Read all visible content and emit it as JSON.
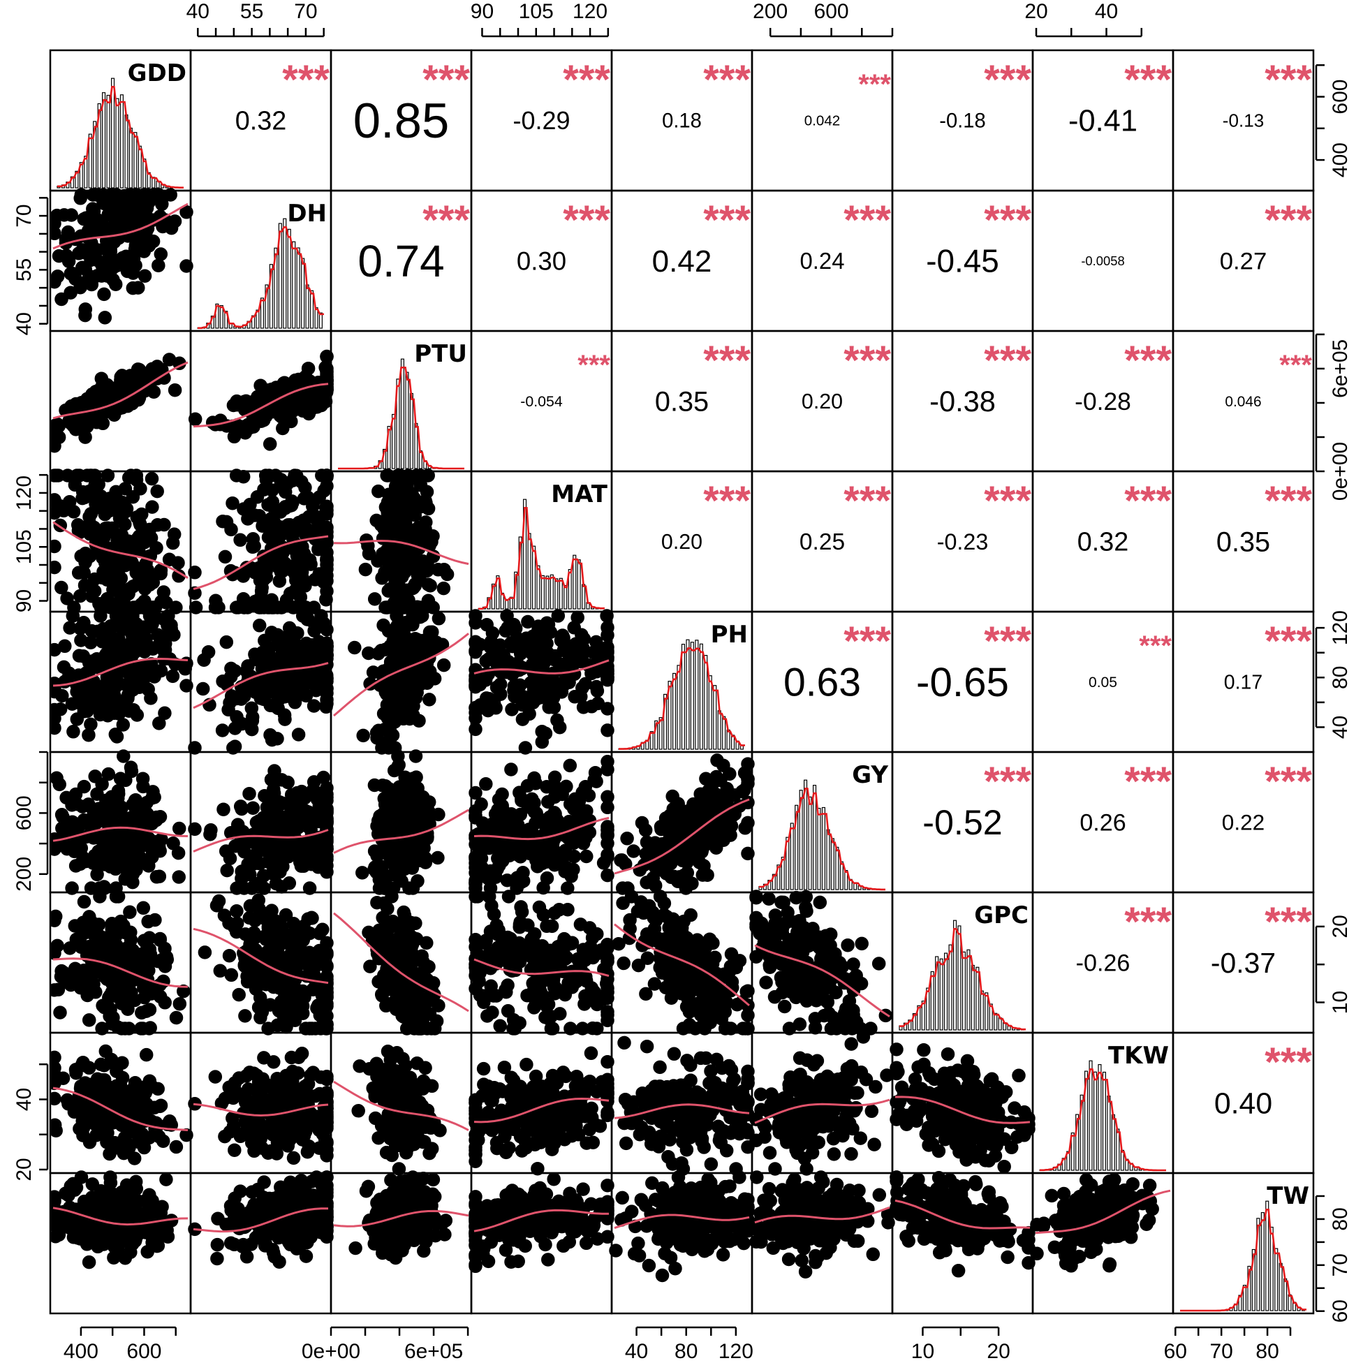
{
  "chart_data": {
    "type": "scatter",
    "variables": [
      "GDD",
      "DH",
      "PTU",
      "MAT",
      "PH",
      "GY",
      "GPC",
      "TKW",
      "TW"
    ],
    "significance_marker": "***",
    "colors": {
      "smooth_line": "#df536b",
      "density_line": "#e41a1c",
      "stars": "#df536b",
      "points": "#000000",
      "bars": "#000000"
    },
    "ranges": {
      "GDD": [
        303,
        747
      ],
      "DH": [
        38,
        77
      ],
      "PTU": [
        0,
        820000
      ],
      "MAT": [
        87,
        126
      ],
      "PH": [
        20,
        133
      ],
      "GY": [
        80,
        1000
      ],
      "GPC": [
        6,
        24.5
      ],
      "TKW": [
        19,
        59
      ],
      "TW": [
        59.5,
        90
      ]
    },
    "top_axis_ticks": [
      {
        "var": "DH",
        "labels": [
          "40",
          "55",
          "70"
        ],
        "values": [
          40,
          55,
          70
        ],
        "minor": [
          40,
          45,
          50,
          55,
          60,
          65,
          70,
          75
        ]
      },
      {
        "var": "MAT",
        "labels": [
          "90",
          "105",
          "120"
        ],
        "values": [
          90,
          105,
          120
        ],
        "minor": [
          90,
          95,
          100,
          105,
          110,
          115,
          120,
          125
        ]
      },
      {
        "var": "GY",
        "labels": [
          "200",
          "600"
        ],
        "values": [
          200,
          600
        ],
        "minor": [
          200,
          400,
          600,
          800,
          1000
        ]
      },
      {
        "var": "TKW",
        "labels": [
          "20",
          "40"
        ],
        "values": [
          20,
          40
        ],
        "minor": [
          20,
          30,
          40,
          50
        ]
      }
    ],
    "bottom_axis_ticks": [
      {
        "var": "GDD",
        "labels": [
          "400",
          "600"
        ],
        "values": [
          400,
          600
        ],
        "minor": [
          400,
          500,
          600,
          700
        ]
      },
      {
        "var": "PTU",
        "labels": [
          "0e+00",
          "6e+05"
        ],
        "values": [
          0,
          600000
        ],
        "minor": [
          0,
          200000,
          400000,
          600000,
          800000
        ]
      },
      {
        "var": "PH",
        "labels": [
          "40",
          "80",
          "120"
        ],
        "values": [
          40,
          80,
          120
        ],
        "minor": [
          40,
          60,
          80,
          100,
          120
        ]
      },
      {
        "var": "GPC",
        "labels": [
          "10",
          "20"
        ],
        "values": [
          10,
          20
        ],
        "minor": [
          10,
          15,
          20
        ]
      },
      {
        "var": "TW",
        "labels": [
          "60",
          "70",
          "80"
        ],
        "values": [
          60,
          70,
          80
        ],
        "minor": [
          60,
          65,
          70,
          75,
          80,
          85
        ]
      }
    ],
    "left_axis_ticks": [
      {
        "var": "DH",
        "labels": [
          "40",
          "55",
          "70"
        ],
        "values": [
          40,
          55,
          70
        ],
        "minor": [
          40,
          45,
          50,
          55,
          60,
          65,
          70,
          75
        ]
      },
      {
        "var": "MAT",
        "labels": [
          "90",
          "105",
          "120"
        ],
        "values": [
          90,
          105,
          120
        ],
        "minor": [
          90,
          95,
          100,
          105,
          110,
          115,
          120,
          125
        ]
      },
      {
        "var": "GY",
        "labels": [
          "200",
          "600"
        ],
        "values": [
          200,
          600
        ],
        "minor": [
          200,
          400,
          600,
          800,
          1000
        ]
      },
      {
        "var": "TKW",
        "labels": [
          "20",
          "40"
        ],
        "values": [
          20,
          40
        ],
        "minor": [
          20,
          30,
          40,
          50
        ]
      }
    ],
    "right_axis_ticks": [
      {
        "var": "GDD",
        "labels": [
          "400",
          "600"
        ],
        "values": [
          400,
          600
        ],
        "minor": [
          400,
          500,
          600,
          700
        ]
      },
      {
        "var": "PTU",
        "labels": [
          "0e+00",
          "6e+05"
        ],
        "values": [
          0,
          600000
        ],
        "minor": [
          0,
          200000,
          400000,
          600000,
          800000
        ]
      },
      {
        "var": "PH",
        "labels": [
          "40",
          "80",
          "120"
        ],
        "values": [
          40,
          80,
          120
        ],
        "minor": [
          40,
          60,
          80,
          100,
          120
        ]
      },
      {
        "var": "GPC",
        "labels": [
          "10",
          "20"
        ],
        "values": [
          10,
          20
        ],
        "minor": [
          10,
          15,
          20
        ]
      },
      {
        "var": "TW",
        "labels": [
          "60",
          "70",
          "80"
        ],
        "values": [
          60,
          70,
          80
        ],
        "minor": [
          60,
          65,
          70,
          75,
          80,
          85
        ]
      }
    ],
    "correlations": [
      {
        "row": "GDD",
        "col": "DH",
        "r": 0.32,
        "label": "0.32",
        "stars": "***"
      },
      {
        "row": "GDD",
        "col": "PTU",
        "r": 0.85,
        "label": "0.85",
        "stars": "***"
      },
      {
        "row": "GDD",
        "col": "MAT",
        "r": -0.29,
        "label": "-0.29",
        "stars": "***"
      },
      {
        "row": "GDD",
        "col": "PH",
        "r": 0.18,
        "label": "0.18",
        "stars": "***"
      },
      {
        "row": "GDD",
        "col": "GY",
        "r": 0.042,
        "label": "0.042",
        "stars": "***"
      },
      {
        "row": "GDD",
        "col": "GPC",
        "r": -0.18,
        "label": "-0.18",
        "stars": "***"
      },
      {
        "row": "GDD",
        "col": "TKW",
        "r": -0.41,
        "label": "-0.41",
        "stars": "***"
      },
      {
        "row": "GDD",
        "col": "TW",
        "r": -0.13,
        "label": "-0.13",
        "stars": "***"
      },
      {
        "row": "DH",
        "col": "PTU",
        "r": 0.74,
        "label": "0.74",
        "stars": "***"
      },
      {
        "row": "DH",
        "col": "MAT",
        "r": 0.3,
        "label": "0.30",
        "stars": "***"
      },
      {
        "row": "DH",
        "col": "PH",
        "r": 0.42,
        "label": "0.42",
        "stars": "***"
      },
      {
        "row": "DH",
        "col": "GY",
        "r": 0.24,
        "label": "0.24",
        "stars": "***"
      },
      {
        "row": "DH",
        "col": "GPC",
        "r": -0.45,
        "label": "-0.45",
        "stars": "***"
      },
      {
        "row": "DH",
        "col": "TKW",
        "r": -0.0058,
        "label": "-0.0058",
        "stars": ""
      },
      {
        "row": "DH",
        "col": "TW",
        "r": 0.27,
        "label": "0.27",
        "stars": "***"
      },
      {
        "row": "PTU",
        "col": "MAT",
        "r": -0.054,
        "label": "-0.054",
        "stars": "***"
      },
      {
        "row": "PTU",
        "col": "PH",
        "r": 0.35,
        "label": "0.35",
        "stars": "***"
      },
      {
        "row": "PTU",
        "col": "GY",
        "r": 0.2,
        "label": "0.20",
        "stars": "***"
      },
      {
        "row": "PTU",
        "col": "GPC",
        "r": -0.38,
        "label": "-0.38",
        "stars": "***"
      },
      {
        "row": "PTU",
        "col": "TKW",
        "r": -0.28,
        "label": "-0.28",
        "stars": "***"
      },
      {
        "row": "PTU",
        "col": "TW",
        "r": 0.046,
        "label": "0.046",
        "stars": "***"
      },
      {
        "row": "MAT",
        "col": "PH",
        "r": 0.2,
        "label": "0.20",
        "stars": "***"
      },
      {
        "row": "MAT",
        "col": "GY",
        "r": 0.25,
        "label": "0.25",
        "stars": "***"
      },
      {
        "row": "MAT",
        "col": "GPC",
        "r": -0.23,
        "label": "-0.23",
        "stars": "***"
      },
      {
        "row": "MAT",
        "col": "TKW",
        "r": 0.32,
        "label": "0.32",
        "stars": "***"
      },
      {
        "row": "MAT",
        "col": "TW",
        "r": 0.35,
        "label": "0.35",
        "stars": "***"
      },
      {
        "row": "PH",
        "col": "GY",
        "r": 0.63,
        "label": "0.63",
        "stars": "***"
      },
      {
        "row": "PH",
        "col": "GPC",
        "r": -0.65,
        "label": "-0.65",
        "stars": "***"
      },
      {
        "row": "PH",
        "col": "TKW",
        "r": 0.05,
        "label": "0.05",
        "stars": "***"
      },
      {
        "row": "PH",
        "col": "TW",
        "r": 0.17,
        "label": "0.17",
        "stars": "***"
      },
      {
        "row": "GY",
        "col": "GPC",
        "r": -0.52,
        "label": "-0.52",
        "stars": "***"
      },
      {
        "row": "GY",
        "col": "TKW",
        "r": 0.26,
        "label": "0.26",
        "stars": "***"
      },
      {
        "row": "GY",
        "col": "TW",
        "r": 0.22,
        "label": "0.22",
        "stars": "***"
      },
      {
        "row": "GPC",
        "col": "TKW",
        "r": -0.26,
        "label": "-0.26",
        "stars": "***"
      },
      {
        "row": "GPC",
        "col": "TW",
        "r": -0.37,
        "label": "-0.37",
        "stars": "***"
      },
      {
        "row": "TKW",
        "col": "TW",
        "r": 0.4,
        "label": "0.40",
        "stars": "***"
      }
    ]
  }
}
